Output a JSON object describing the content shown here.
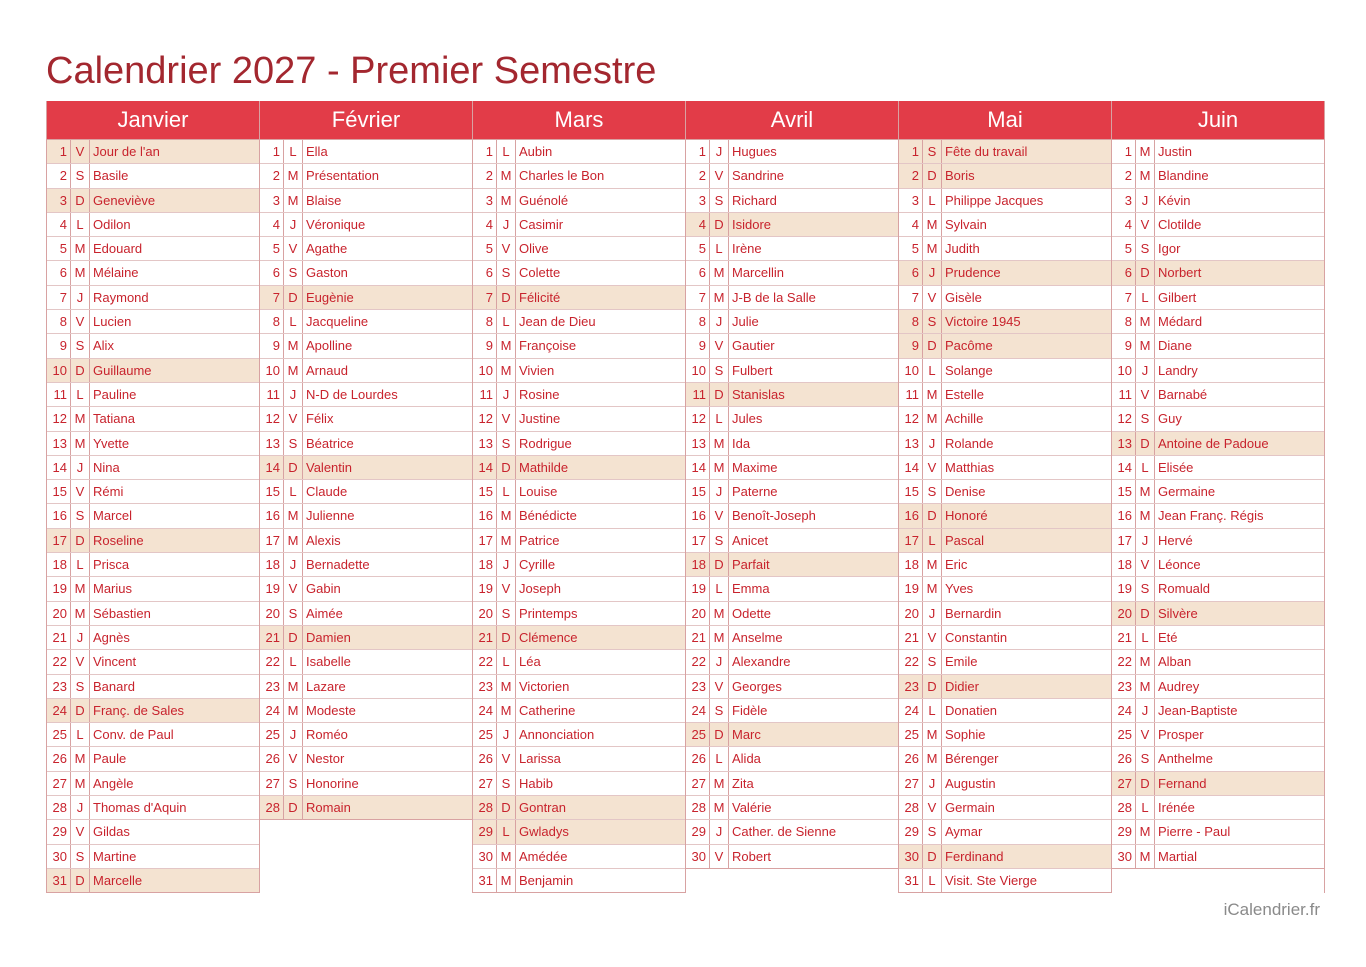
{
  "title": "Calendrier 2027 - Premier Semestre",
  "footer": "iCalendrier.fr",
  "colors": {
    "header_bg": "#e23c48",
    "title": "#a3272f",
    "text": "#c8232d",
    "weekend_bg": "#f4e3d1"
  },
  "months": [
    {
      "name": "Janvier",
      "days": [
        [
          "1",
          "V",
          "Jour de l'an",
          1
        ],
        [
          "2",
          "S",
          "Basile",
          0
        ],
        [
          "3",
          "D",
          "Geneviève",
          1
        ],
        [
          "4",
          "L",
          "Odilon",
          0
        ],
        [
          "5",
          "M",
          "Edouard",
          0
        ],
        [
          "6",
          "M",
          "Mélaine",
          0
        ],
        [
          "7",
          "J",
          "Raymond",
          0
        ],
        [
          "8",
          "V",
          "Lucien",
          0
        ],
        [
          "9",
          "S",
          "Alix",
          0
        ],
        [
          "10",
          "D",
          "Guillaume",
          1
        ],
        [
          "11",
          "L",
          "Pauline",
          0
        ],
        [
          "12",
          "M",
          "Tatiana",
          0
        ],
        [
          "13",
          "M",
          "Yvette",
          0
        ],
        [
          "14",
          "J",
          "Nina",
          0
        ],
        [
          "15",
          "V",
          "Rémi",
          0
        ],
        [
          "16",
          "S",
          "Marcel",
          0
        ],
        [
          "17",
          "D",
          "Roseline",
          1
        ],
        [
          "18",
          "L",
          "Prisca",
          0
        ],
        [
          "19",
          "M",
          "Marius",
          0
        ],
        [
          "20",
          "M",
          "Sébastien",
          0
        ],
        [
          "21",
          "J",
          "Agnès",
          0
        ],
        [
          "22",
          "V",
          "Vincent",
          0
        ],
        [
          "23",
          "S",
          "Banard",
          0
        ],
        [
          "24",
          "D",
          "Franç. de Sales",
          1
        ],
        [
          "25",
          "L",
          "Conv. de Paul",
          0
        ],
        [
          "26",
          "M",
          "Paule",
          0
        ],
        [
          "27",
          "M",
          "Angèle",
          0
        ],
        [
          "28",
          "J",
          "Thomas d'Aquin",
          0
        ],
        [
          "29",
          "V",
          "Gildas",
          0
        ],
        [
          "30",
          "S",
          "Martine",
          0
        ],
        [
          "31",
          "D",
          "Marcelle",
          1
        ]
      ]
    },
    {
      "name": "Février",
      "days": [
        [
          "1",
          "L",
          "Ella",
          0
        ],
        [
          "2",
          "M",
          "Présentation",
          0
        ],
        [
          "3",
          "M",
          "Blaise",
          0
        ],
        [
          "4",
          "J",
          "Véronique",
          0
        ],
        [
          "5",
          "V",
          "Agathe",
          0
        ],
        [
          "6",
          "S",
          "Gaston",
          0
        ],
        [
          "7",
          "D",
          "Eugènie",
          1
        ],
        [
          "8",
          "L",
          "Jacqueline",
          0
        ],
        [
          "9",
          "M",
          "Apolline",
          0
        ],
        [
          "10",
          "M",
          "Arnaud",
          0
        ],
        [
          "11",
          "J",
          "N-D de Lourdes",
          0
        ],
        [
          "12",
          "V",
          "Félix",
          0
        ],
        [
          "13",
          "S",
          "Béatrice",
          0
        ],
        [
          "14",
          "D",
          "Valentin",
          1
        ],
        [
          "15",
          "L",
          "Claude",
          0
        ],
        [
          "16",
          "M",
          "Julienne",
          0
        ],
        [
          "17",
          "M",
          "Alexis",
          0
        ],
        [
          "18",
          "J",
          "Bernadette",
          0
        ],
        [
          "19",
          "V",
          "Gabin",
          0
        ],
        [
          "20",
          "S",
          "Aimée",
          0
        ],
        [
          "21",
          "D",
          "Damien",
          1
        ],
        [
          "22",
          "L",
          "Isabelle",
          0
        ],
        [
          "23",
          "M",
          "Lazare",
          0
        ],
        [
          "24",
          "M",
          "Modeste",
          0
        ],
        [
          "25",
          "J",
          "Roméo",
          0
        ],
        [
          "26",
          "V",
          "Nestor",
          0
        ],
        [
          "27",
          "S",
          "Honorine",
          0
        ],
        [
          "28",
          "D",
          "Romain",
          1
        ]
      ]
    },
    {
      "name": "Mars",
      "days": [
        [
          "1",
          "L",
          "Aubin",
          0
        ],
        [
          "2",
          "M",
          "Charles le Bon",
          0
        ],
        [
          "3",
          "M",
          "Guénolé",
          0
        ],
        [
          "4",
          "J",
          "Casimir",
          0
        ],
        [
          "5",
          "V",
          "Olive",
          0
        ],
        [
          "6",
          "S",
          "Colette",
          0
        ],
        [
          "7",
          "D",
          "Félicité",
          1
        ],
        [
          "8",
          "L",
          "Jean de Dieu",
          0
        ],
        [
          "9",
          "M",
          "Françoise",
          0
        ],
        [
          "10",
          "M",
          "Vivien",
          0
        ],
        [
          "11",
          "J",
          "Rosine",
          0
        ],
        [
          "12",
          "V",
          "Justine",
          0
        ],
        [
          "13",
          "S",
          "Rodrigue",
          0
        ],
        [
          "14",
          "D",
          "Mathilde",
          1
        ],
        [
          "15",
          "L",
          "Louise",
          0
        ],
        [
          "16",
          "M",
          "Bénédicte",
          0
        ],
        [
          "17",
          "M",
          "Patrice",
          0
        ],
        [
          "18",
          "J",
          "Cyrille",
          0
        ],
        [
          "19",
          "V",
          "Joseph",
          0
        ],
        [
          "20",
          "S",
          "Printemps",
          0
        ],
        [
          "21",
          "D",
          "Clémence",
          1
        ],
        [
          "22",
          "L",
          "Léa",
          0
        ],
        [
          "23",
          "M",
          "Victorien",
          0
        ],
        [
          "24",
          "M",
          "Catherine",
          0
        ],
        [
          "25",
          "J",
          "Annonciation",
          0
        ],
        [
          "26",
          "V",
          "Larissa",
          0
        ],
        [
          "27",
          "S",
          "Habib",
          0
        ],
        [
          "28",
          "D",
          "Gontran",
          1
        ],
        [
          "29",
          "L",
          "Gwladys",
          1
        ],
        [
          "30",
          "M",
          "Amédée",
          0
        ],
        [
          "31",
          "M",
          "Benjamin",
          0
        ]
      ]
    },
    {
      "name": "Avril",
      "days": [
        [
          "1",
          "J",
          "Hugues",
          0
        ],
        [
          "2",
          "V",
          "Sandrine",
          0
        ],
        [
          "3",
          "S",
          "Richard",
          0
        ],
        [
          "4",
          "D",
          "Isidore",
          1
        ],
        [
          "5",
          "L",
          "Irène",
          0
        ],
        [
          "6",
          "M",
          "Marcellin",
          0
        ],
        [
          "7",
          "M",
          "J-B de la Salle",
          0
        ],
        [
          "8",
          "J",
          "Julie",
          0
        ],
        [
          "9",
          "V",
          "Gautier",
          0
        ],
        [
          "10",
          "S",
          "Fulbert",
          0
        ],
        [
          "11",
          "D",
          "Stanislas",
          1
        ],
        [
          "12",
          "L",
          "Jules",
          0
        ],
        [
          "13",
          "M",
          "Ida",
          0
        ],
        [
          "14",
          "M",
          "Maxime",
          0
        ],
        [
          "15",
          "J",
          "Paterne",
          0
        ],
        [
          "16",
          "V",
          "Benoît-Joseph",
          0
        ],
        [
          "17",
          "S",
          "Anicet",
          0
        ],
        [
          "18",
          "D",
          "Parfait",
          1
        ],
        [
          "19",
          "L",
          "Emma",
          0
        ],
        [
          "20",
          "M",
          "Odette",
          0
        ],
        [
          "21",
          "M",
          "Anselme",
          0
        ],
        [
          "22",
          "J",
          "Alexandre",
          0
        ],
        [
          "23",
          "V",
          "Georges",
          0
        ],
        [
          "24",
          "S",
          "Fidèle",
          0
        ],
        [
          "25",
          "D",
          "Marc",
          1
        ],
        [
          "26",
          "L",
          "Alida",
          0
        ],
        [
          "27",
          "M",
          "Zita",
          0
        ],
        [
          "28",
          "M",
          "Valérie",
          0
        ],
        [
          "29",
          "J",
          "Cather. de Sienne",
          0
        ],
        [
          "30",
          "V",
          "Robert",
          0
        ]
      ]
    },
    {
      "name": "Mai",
      "days": [
        [
          "1",
          "S",
          "Fête du travail",
          1
        ],
        [
          "2",
          "D",
          "Boris",
          1
        ],
        [
          "3",
          "L",
          "Philippe Jacques",
          0
        ],
        [
          "4",
          "M",
          "Sylvain",
          0
        ],
        [
          "5",
          "M",
          "Judith",
          0
        ],
        [
          "6",
          "J",
          "Prudence",
          1
        ],
        [
          "7",
          "V",
          "Gisèle",
          0
        ],
        [
          "8",
          "S",
          "Victoire 1945",
          1
        ],
        [
          "9",
          "D",
          "Pacôme",
          1
        ],
        [
          "10",
          "L",
          "Solange",
          0
        ],
        [
          "11",
          "M",
          "Estelle",
          0
        ],
        [
          "12",
          "M",
          "Achille",
          0
        ],
        [
          "13",
          "J",
          "Rolande",
          0
        ],
        [
          "14",
          "V",
          "Matthias",
          0
        ],
        [
          "15",
          "S",
          "Denise",
          0
        ],
        [
          "16",
          "D",
          "Honoré",
          1
        ],
        [
          "17",
          "L",
          "Pascal",
          1
        ],
        [
          "18",
          "M",
          "Eric",
          0
        ],
        [
          "19",
          "M",
          "Yves",
          0
        ],
        [
          "20",
          "J",
          "Bernardin",
          0
        ],
        [
          "21",
          "V",
          "Constantin",
          0
        ],
        [
          "22",
          "S",
          "Emile",
          0
        ],
        [
          "23",
          "D",
          "Didier",
          1
        ],
        [
          "24",
          "L",
          "Donatien",
          0
        ],
        [
          "25",
          "M",
          "Sophie",
          0
        ],
        [
          "26",
          "M",
          "Bérenger",
          0
        ],
        [
          "27",
          "J",
          "Augustin",
          0
        ],
        [
          "28",
          "V",
          "Germain",
          0
        ],
        [
          "29",
          "S",
          "Aymar",
          0
        ],
        [
          "30",
          "D",
          "Ferdinand",
          1
        ],
        [
          "31",
          "L",
          "Visit. Ste Vierge",
          0
        ]
      ]
    },
    {
      "name": "Juin",
      "days": [
        [
          "1",
          "M",
          "Justin",
          0
        ],
        [
          "2",
          "M",
          "Blandine",
          0
        ],
        [
          "3",
          "J",
          "Kévin",
          0
        ],
        [
          "4",
          "V",
          "Clotilde",
          0
        ],
        [
          "5",
          "S",
          "Igor",
          0
        ],
        [
          "6",
          "D",
          "Norbert",
          1
        ],
        [
          "7",
          "L",
          "Gilbert",
          0
        ],
        [
          "8",
          "M",
          "Médard",
          0
        ],
        [
          "9",
          "M",
          "Diane",
          0
        ],
        [
          "10",
          "J",
          "Landry",
          0
        ],
        [
          "11",
          "V",
          "Barnabé",
          0
        ],
        [
          "12",
          "S",
          "Guy",
          0
        ],
        [
          "13",
          "D",
          "Antoine de Padoue",
          1
        ],
        [
          "14",
          "L",
          "Elisée",
          0
        ],
        [
          "15",
          "M",
          "Germaine",
          0
        ],
        [
          "16",
          "M",
          "Jean Franç. Régis",
          0
        ],
        [
          "17",
          "J",
          "Hervé",
          0
        ],
        [
          "18",
          "V",
          "Léonce",
          0
        ],
        [
          "19",
          "S",
          "Romuald",
          0
        ],
        [
          "20",
          "D",
          "Silvère",
          1
        ],
        [
          "21",
          "L",
          "Eté",
          0
        ],
        [
          "22",
          "M",
          "Alban",
          0
        ],
        [
          "23",
          "M",
          "Audrey",
          0
        ],
        [
          "24",
          "J",
          "Jean-Baptiste",
          0
        ],
        [
          "25",
          "V",
          "Prosper",
          0
        ],
        [
          "26",
          "S",
          "Anthelme",
          0
        ],
        [
          "27",
          "D",
          "Fernand",
          1
        ],
        [
          "28",
          "L",
          "Irénée",
          0
        ],
        [
          "29",
          "M",
          "Pierre - Paul",
          0
        ],
        [
          "30",
          "M",
          "Martial",
          0
        ]
      ]
    }
  ]
}
